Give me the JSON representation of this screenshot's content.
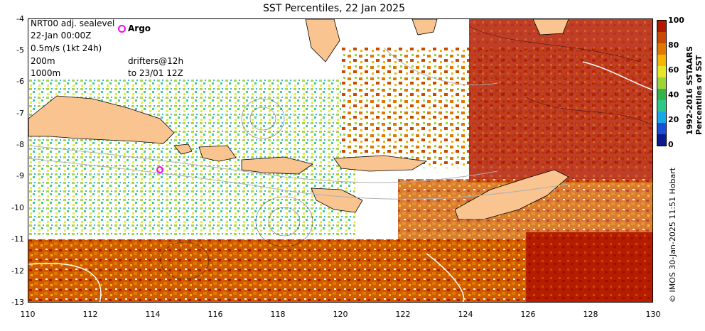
{
  "title": "SST Percentiles, 22 Jan 2025",
  "legend": {
    "lines": [
      "NRT00 adj. sealevel",
      "22-Jan 00:00Z",
      "0.5m/s (1kt 24h)",
      "200m",
      "1000m"
    ],
    "argo_label": "Argo",
    "drifters_lines": [
      "drifters@12h",
      "to 23/01 12Z"
    ]
  },
  "axes": {
    "y_labels": [
      "-4",
      "-5",
      "-6",
      "-7",
      "-8",
      "-9",
      "-10",
      "-11",
      "-12",
      "-13"
    ],
    "x_labels": [
      "110",
      "112",
      "114",
      "116",
      "118",
      "120",
      "122",
      "124",
      "126",
      "128",
      "130"
    ]
  },
  "colorbar": {
    "title_line1": "1992-2016 SSTAARS",
    "title_line2": "Percentiles of SST",
    "labels": [
      "100",
      "80",
      "60",
      "40",
      "20",
      "0"
    ],
    "colors": [
      "#0b1a8c",
      "#1a4fd6",
      "#18a8e8",
      "#2dc88a",
      "#34b34a",
      "#9cd23a",
      "#e6e626",
      "#f5b400",
      "#e07800",
      "#c94a00",
      "#b01800"
    ]
  },
  "credit": "© IMOS 30-Jan-2025 11:51 Hobart"
}
